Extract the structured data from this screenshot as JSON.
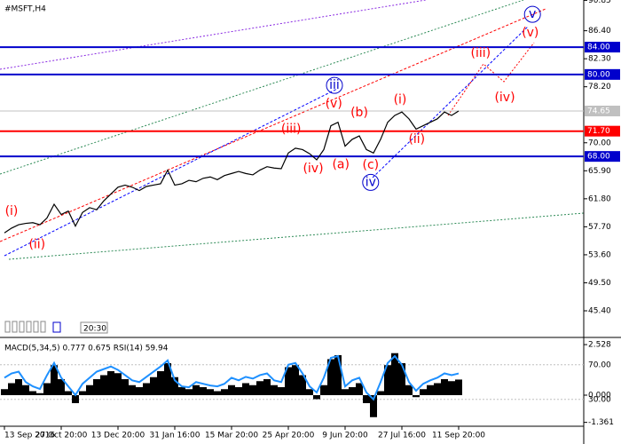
{
  "toolbar": {
    "time": "20:30"
  },
  "chart_data": [
    {
      "type": "line",
      "title": "#MSFT,H4",
      "color": "#000000",
      "categories": [
        "13 Sep 2016",
        null,
        null,
        null,
        null,
        null,
        null,
        null,
        "27 Oct 20:00",
        null,
        null,
        null,
        null,
        null,
        null,
        null,
        "13 Dec 20:00",
        null,
        null,
        null,
        null,
        null,
        null,
        null,
        "31 Jan 16:00",
        null,
        null,
        null,
        null,
        null,
        null,
        null,
        "15 Mar 20:00",
        null,
        null,
        null,
        null,
        null,
        null,
        null,
        "25 Apr 20:00",
        null,
        null,
        null,
        null,
        null,
        null,
        null,
        "9 Jun 20:00",
        null,
        null,
        null,
        null,
        null,
        null,
        null,
        "27 Jul 16:00",
        null,
        null,
        null,
        null,
        null,
        null,
        null,
        "11 Sep 20:00"
      ],
      "values": [
        56.8,
        57.5,
        58.0,
        58.2,
        58.3,
        58.0,
        59.0,
        61.0,
        59.5,
        60.0,
        57.8,
        59.8,
        60.5,
        60.2,
        61.5,
        62.5,
        63.5,
        63.8,
        63.5,
        63.0,
        63.6,
        63.8,
        64.0,
        66.0,
        63.8,
        64.0,
        64.5,
        64.3,
        64.8,
        65.0,
        64.6,
        65.2,
        65.5,
        65.8,
        65.5,
        65.3,
        66.0,
        66.5,
        66.3,
        66.2,
        68.5,
        69.2,
        69.0,
        68.4,
        67.5,
        69.0,
        72.5,
        73.0,
        69.5,
        70.5,
        71.0,
        69.0,
        68.5,
        70.5,
        73.0,
        74.0,
        74.5,
        73.5,
        72.0,
        72.5,
        73.0,
        73.5,
        74.5,
        74.0,
        74.65
      ],
      "ylim": [
        41.5,
        90.9
      ],
      "yticks": [
        90.85,
        {
          "value": 86.4,
          "label": "86.40"
        },
        {
          "value": 82.3,
          "label": "82.30"
        },
        {
          "value": 78.2,
          "label": "78.20"
        },
        {
          "value": 70,
          "label": "70.00"
        },
        {
          "value": 65.9,
          "label": "65.90"
        },
        {
          "value": 61.8,
          "label": "61.80"
        },
        {
          "value": 57.7,
          "label": "57.70"
        },
        {
          "value": 53.6,
          "label": "53.60"
        },
        {
          "value": 49.5,
          "label": "49.50"
        },
        {
          "value": 45.4,
          "label": "45.40"
        }
      ],
      "grid": false,
      "levels": [
        {
          "value": 84,
          "label": "84.00",
          "color": "#0000cc"
        },
        {
          "value": 80,
          "label": "80.00",
          "color": "#0000cc"
        },
        {
          "value": 74.65,
          "label": "74.65",
          "color": "#c0c0c0"
        },
        {
          "value": 71.7,
          "label": "71.70",
          "color": "#ff0000"
        },
        {
          "value": 68,
          "label": "68.00",
          "color": "#0000cc"
        }
      ],
      "annotations": [
        {
          "text": "(i)",
          "x": 1,
          "y": 59.95,
          "color": "#ff0000"
        },
        {
          "text": "(ii)",
          "x": 4.6,
          "y": 55.1,
          "color": "#ff0000"
        },
        {
          "text": "(iii)",
          "x": 40.4,
          "y": 72.0,
          "color": "#ff0000"
        },
        {
          "text": "(iv)",
          "x": 43.5,
          "y": 66.2,
          "color": "#ff0000"
        },
        {
          "text": "(v)",
          "x": 46.4,
          "y": 75.7,
          "color": "#ff0000"
        },
        {
          "text": "iii",
          "x": 46.5,
          "y": 78.4,
          "color": "#0000cc",
          "circled": true
        },
        {
          "text": "(a)",
          "x": 47.4,
          "y": 66.8,
          "color": "#ff0000"
        },
        {
          "text": "(b)",
          "x": 50,
          "y": 74.4,
          "color": "#ff0000"
        },
        {
          "text": "(c)",
          "x": 51.6,
          "y": 66.7,
          "color": "#ff0000"
        },
        {
          "text": "iv",
          "x": 51.6,
          "y": 64.2,
          "color": "#0000cc",
          "circled": true
        },
        {
          "text": "(i)",
          "x": 55.75,
          "y": 76.3,
          "color": "#ff0000"
        },
        {
          "text": "(ii)",
          "x": 58.1,
          "y": 70.5,
          "color": "#ff0000"
        },
        {
          "text": "(iii)",
          "x": 67.1,
          "y": 83.1,
          "color": "#ff0000"
        },
        {
          "text": "(iv)",
          "x": 70.5,
          "y": 76.6,
          "color": "#ff0000"
        },
        {
          "text": "(v)",
          "x": 74.1,
          "y": 86.1,
          "color": "#ff0000"
        },
        {
          "text": "v",
          "x": 74.4,
          "y": 88.8,
          "color": "#0000cc",
          "circled": true
        }
      ]
    },
    {
      "type": "bar",
      "title": "MACD(5,34,5) 0.777 0.675 RSI(14) 59.94",
      "color": "#000000",
      "values": [
        0.3,
        0.6,
        0.8,
        0.5,
        0.2,
        0.1,
        0.6,
        1.5,
        0.8,
        0.2,
        -0.4,
        0.2,
        0.5,
        0.8,
        1.0,
        1.2,
        1.1,
        0.8,
        0.5,
        0.4,
        0.6,
        0.9,
        1.2,
        1.6,
        0.9,
        0.4,
        0.3,
        0.5,
        0.4,
        0.3,
        0.2,
        0.3,
        0.5,
        0.4,
        0.6,
        0.5,
        0.7,
        0.8,
        0.5,
        0.4,
        1.4,
        1.5,
        1.0,
        0.3,
        -0.2,
        0.5,
        1.8,
        2.0,
        0.3,
        0.4,
        0.6,
        -0.4,
        -1.1,
        0.2,
        1.5,
        2.1,
        1.6,
        0.5,
        -0.1,
        0.3,
        0.5,
        0.6,
        0.8,
        0.7,
        0.78
      ],
      "ylim": [
        -1.51,
        2.82
      ],
      "yticks": [
        2.528,
        {
          "value": 0,
          "label": "0.000"
        },
        -1.361
      ],
      "y2lim": [
        0,
        100
      ],
      "y2ticks": [
        {
          "value": 70,
          "label": "70.00"
        },
        {
          "value": 30,
          "label": "30.00"
        }
      ],
      "series": [
        {
          "color": "#1e90ff",
          "axis": "y2",
          "values": [
            55,
            60,
            62,
            50,
            45,
            42,
            58,
            72,
            55,
            45,
            35,
            48,
            55,
            62,
            65,
            68,
            64,
            58,
            52,
            50,
            56,
            62,
            68,
            75,
            52,
            45,
            44,
            50,
            48,
            46,
            45,
            48,
            55,
            52,
            56,
            54,
            58,
            60,
            52,
            50,
            70,
            72,
            60,
            45,
            38,
            55,
            78,
            80,
            45,
            52,
            55,
            38,
            30,
            50,
            72,
            80,
            70,
            50,
            40,
            48,
            52,
            55,
            60,
            58,
            59.94
          ]
        }
      ]
    }
  ]
}
